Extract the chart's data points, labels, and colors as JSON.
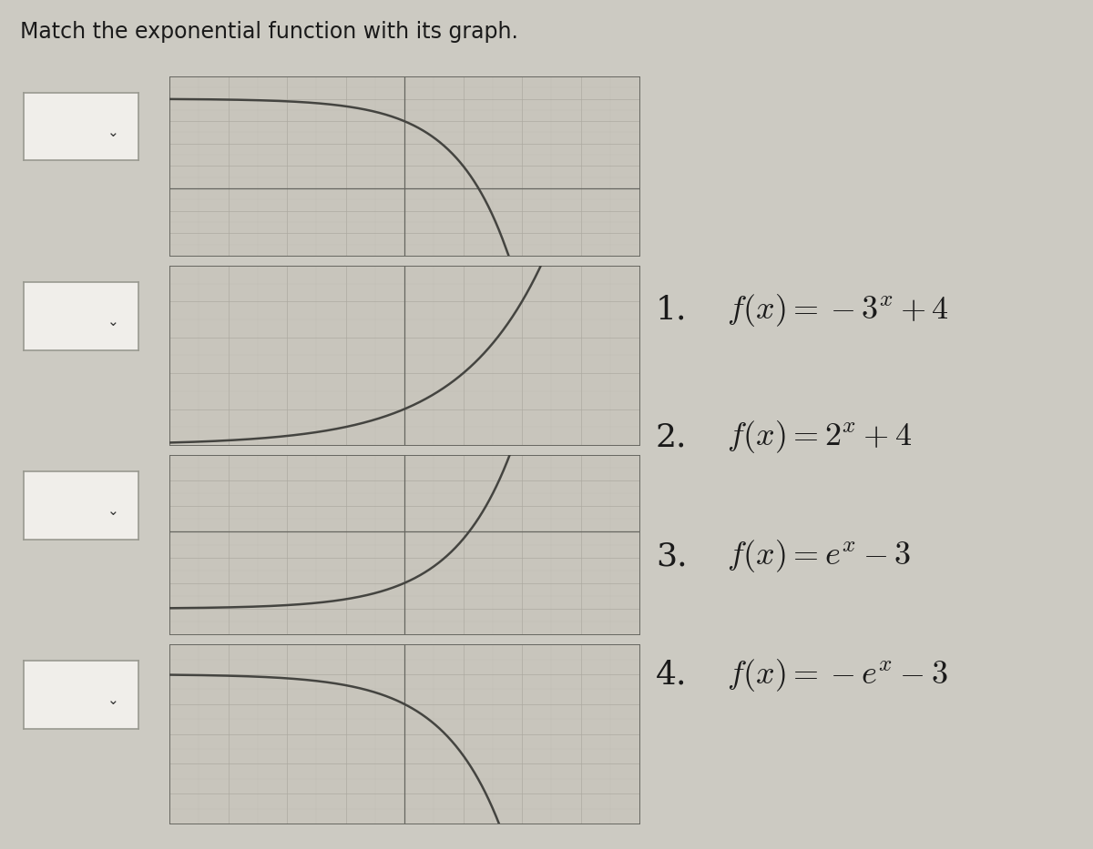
{
  "title": "Match the exponential function with its graph.",
  "title_fontsize": 17,
  "bg_color": "#cccac2",
  "graph_bg": "#c8c5bc",
  "grid_color_major": "#aaa89f",
  "grid_color_minor": "#bbb9b0",
  "axis_color": "#666660",
  "curve_color": "#444440",
  "curve_lw": 1.8,
  "dropdown_color": "#f0eeea",
  "dropdown_border": "#999990",
  "text_color": "#1a1a1a",
  "formula_fontsize": 26,
  "functions": [
    {
      "label_num": "1.",
      "label_math": "$f(x) = -3^x + 4$",
      "type": "neg_exp_up"
    },
    {
      "label_num": "2.",
      "label_math": "$f(x) = 2^x + 4$",
      "type": "exp_up"
    },
    {
      "label_num": "3.",
      "label_math": "$f(x) = e^x - 3$",
      "type": "exp_down"
    },
    {
      "label_num": "4.",
      "label_math": "$f(x) = -e^x - 3$",
      "type": "neg_exp_down"
    }
  ],
  "graph_xlim": [
    -4,
    4
  ],
  "ylims": {
    "neg_exp_up": [
      -3,
      5
    ],
    "exp_up": [
      4,
      9
    ],
    "exp_down": [
      -4,
      3
    ],
    "neg_exp_down": [
      -8,
      -2
    ]
  }
}
